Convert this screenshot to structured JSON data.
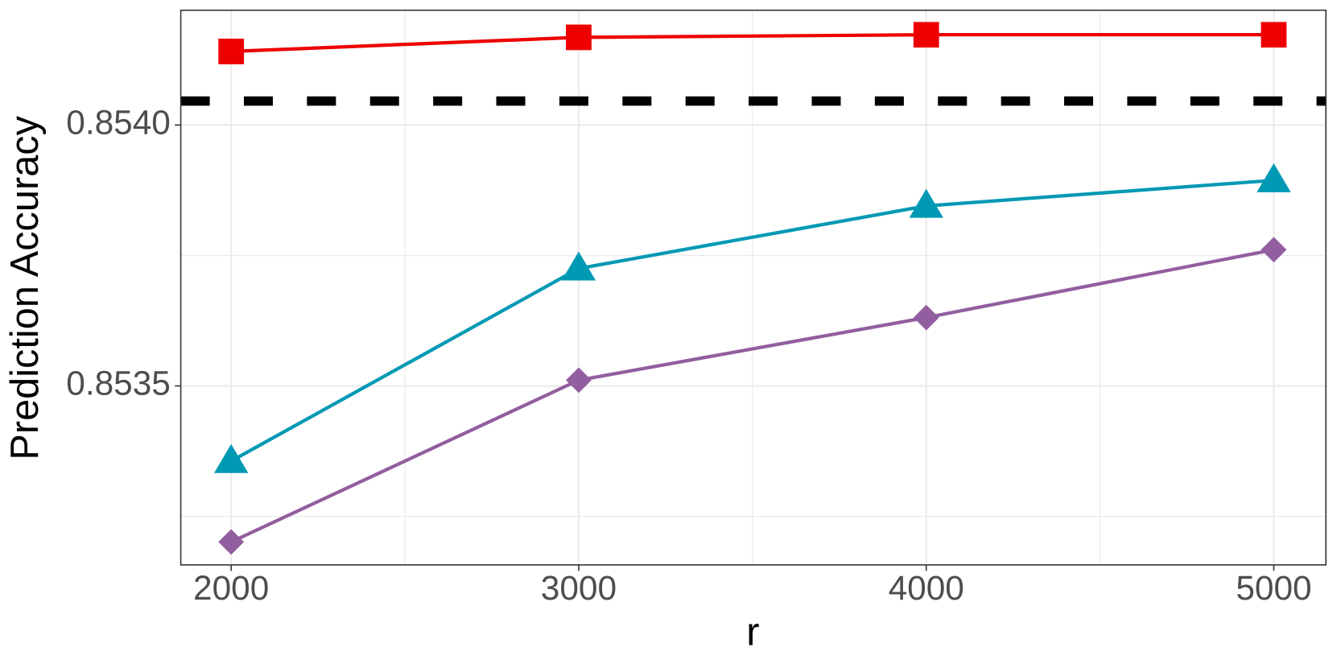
{
  "chart_data": {
    "type": "line",
    "x_label": "r",
    "y_label": "Prediction Accuracy",
    "x": [
      2000,
      3000,
      4000,
      5000
    ],
    "series": [
      {
        "color": "#ee0000",
        "marker": "square",
        "values": [
          0.854141,
          0.854168,
          0.854173,
          0.854173
        ]
      },
      {
        "color": "#0099b4",
        "marker": "triangle",
        "values": [
          0.853356,
          0.853725,
          0.853845,
          0.853894
        ]
      },
      {
        "color": "#925e9f",
        "marker": "diamond",
        "values": [
          0.853201,
          0.853511,
          0.853631,
          0.853761
        ]
      }
    ],
    "hline": {
      "value": 0.854046,
      "color": "#000000",
      "style": "dashed"
    },
    "xlim": [
      1855,
      5150
    ],
    "ylim": [
      0.853157,
      0.85422
    ],
    "xticks": [
      2000,
      3000,
      4000,
      5000
    ],
    "yticks": [
      0.8535,
      {
        "value": 0.854,
        "label": "0.8540"
      }
    ],
    "minor_xticks": [
      2500,
      3500,
      4500
    ],
    "minor_yticks": [
      0.85325,
      0.85375
    ],
    "grid": true
  }
}
